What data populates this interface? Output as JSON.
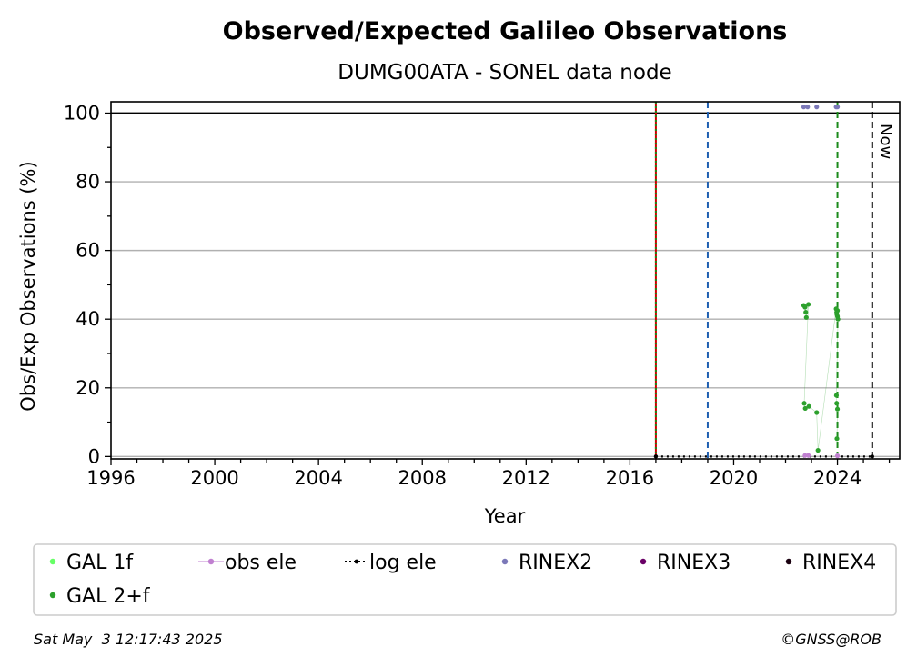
{
  "chart_data": {
    "type": "scatter",
    "title": "Observed/Expected Galileo Observations",
    "subtitle": "DUMG00ATA - SONEL data node",
    "xlabel": "Year",
    "ylabel": "Obs/Exp Observations (%)",
    "xlim": [
      1996,
      2026.4
    ],
    "ylim": [
      -0.7,
      103.3
    ],
    "x_ticks": [
      1996,
      2000,
      2004,
      2008,
      2012,
      2016,
      2020,
      2024
    ],
    "y_ticks": [
      0,
      20,
      40,
      60,
      80,
      100
    ],
    "grid": "y",
    "reference_lines": {
      "hline_100": 100,
      "vline_red": 2017.0,
      "vline_green_dotted": 2017.0,
      "vline_blue": 2019.0,
      "vline_green": 2024.0,
      "vline_now": 2025.34,
      "now_label": "Now"
    },
    "series": [
      {
        "name": "GAL 1f",
        "color": "#66ff66",
        "points": []
      },
      {
        "name": "GAL 2+f",
        "color": "#2ca02c",
        "points": [
          [
            2022.7,
            44
          ],
          [
            2022.75,
            43.5
          ],
          [
            2022.78,
            42
          ],
          [
            2022.8,
            40.5
          ],
          [
            2022.88,
            44.3
          ],
          [
            2022.72,
            15.5
          ],
          [
            2022.76,
            14
          ],
          [
            2022.9,
            14.6
          ],
          [
            2023.2,
            12.8
          ],
          [
            2023.25,
            1.8
          ],
          [
            2023.95,
            43
          ],
          [
            2023.97,
            42
          ],
          [
            2023.98,
            41.3
          ],
          [
            2024.0,
            40.8
          ],
          [
            2024.0,
            42.5
          ],
          [
            2024.02,
            40
          ],
          [
            2023.96,
            17.8
          ],
          [
            2023.97,
            15.5
          ],
          [
            2024.0,
            13.8
          ],
          [
            2023.98,
            5.2
          ]
        ]
      },
      {
        "name": "obs ele",
        "color": "#c080d0",
        "points": [
          [
            2022.75,
            0.3
          ],
          [
            2022.88,
            0.3
          ],
          [
            2024.0,
            0.2
          ]
        ]
      },
      {
        "name": "log ele",
        "color": "#000000",
        "points": [
          [
            2017.0,
            0
          ],
          [
            2025.34,
            0
          ]
        ]
      },
      {
        "name": "RINEX2",
        "color": "#7b78b8",
        "points": [
          [
            2022.7,
            101.8
          ],
          [
            2022.85,
            101.8
          ],
          [
            2023.2,
            101.8
          ],
          [
            2023.95,
            101.8
          ],
          [
            2024.0,
            101.8
          ]
        ]
      },
      {
        "name": "RINEX3",
        "color": "#6a0066",
        "points": []
      },
      {
        "name": "RINEX4",
        "color": "#1a0010",
        "points": []
      }
    ],
    "legend": {
      "placement": "below",
      "entries": [
        {
          "label": "GAL 1f",
          "marker": "dot",
          "color": "#66ff66"
        },
        {
          "label": "obs ele",
          "marker": "line-dot",
          "color": "#c080d0"
        },
        {
          "label": "log ele",
          "marker": "dotted-line-dot",
          "color": "#000000"
        },
        {
          "label": "RINEX2",
          "marker": "dot",
          "color": "#7b78b8"
        },
        {
          "label": "RINEX3",
          "marker": "dot",
          "color": "#6a0066"
        },
        {
          "label": "RINEX4",
          "marker": "dot",
          "color": "#1a0010"
        },
        {
          "label": "GAL 2+f",
          "marker": "dot",
          "color": "#2ca02c"
        }
      ]
    }
  },
  "footer": {
    "timestamp": "Sat May  3 12:17:43 2025",
    "credit": "©GNSS@ROB"
  }
}
